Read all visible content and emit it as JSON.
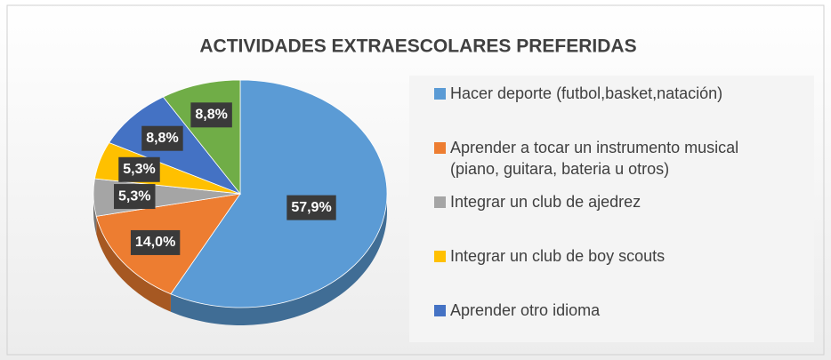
{
  "chart_data": {
    "type": "pie",
    "title": "ACTIVIDADES EXTRAESCOLARES PREFERIDAS",
    "categories": [
      "Hacer deporte (futbol,basket,natación)",
      "Aprender a tocar un instrumento musical\n(piano, guitara, bateria u otros)",
      "Integrar un club de ajedrez",
      "Integrar un club de boy scouts",
      "Aprender otro idioma",
      null
    ],
    "values": [
      57.9,
      14.0,
      5.3,
      5.3,
      8.8,
      8.8
    ],
    "value_labels": [
      "57,9%",
      "14,0%",
      "5,3%",
      "5,3%",
      "8,8%",
      "8,8%"
    ],
    "colors": [
      "#5b9bd5",
      "#ed7d31",
      "#a5a5a5",
      "#ffc000",
      "#4472c4",
      "#70ad47"
    ],
    "legend": "right"
  }
}
